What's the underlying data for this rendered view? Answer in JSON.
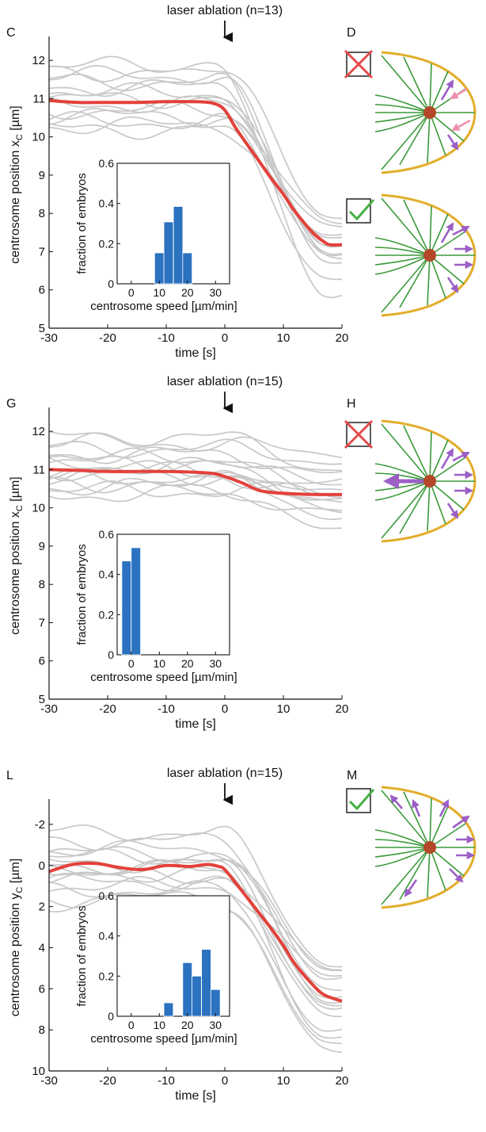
{
  "panel_letters": [
    "C",
    "D",
    "G",
    "H",
    "L",
    "M"
  ],
  "annotation_text": "laser ablation (n=13)",
  "annotation_text_2": "laser ablation (n=15)",
  "colors": {
    "mean": "#e3413b",
    "traces": "#c8c8c8",
    "bars": "#2b72c0",
    "cortex": "#e3ad2a",
    "microtubule": "#3a9a3a",
    "centrosome": "#b34727",
    "force_arrow": "#9b5fc6",
    "weak_arrow": "#ee90aa",
    "check": "#44b144",
    "cross": "#e34b4b"
  },
  "chart_data": [
    {
      "panel": "C",
      "type": "line",
      "xlabel": "time [s]",
      "ylabel": "centrosome position x",
      "ylabel_sub": "C",
      "ylabel_unit": " [µm]",
      "xlim": [
        -30,
        20
      ],
      "ylim": [
        5,
        12.5
      ],
      "y_inverted": false,
      "xticks": [
        -30,
        -20,
        -10,
        0,
        10,
        20
      ],
      "yticks": [
        5,
        6,
        7,
        8,
        9,
        10,
        11,
        12
      ],
      "annotation": "laser ablation (n=13)",
      "annotation_x": 0,
      "mean": {
        "x": [
          -30,
          -25,
          -20,
          -15,
          -10,
          -5,
          -2,
          0,
          2,
          5,
          8,
          10,
          12,
          15,
          17,
          18,
          20
        ],
        "y": [
          10.95,
          10.9,
          10.9,
          10.9,
          10.92,
          10.92,
          10.88,
          10.7,
          10.2,
          9.55,
          8.9,
          8.5,
          8.05,
          7.5,
          7.25,
          7.18,
          7.18
        ]
      },
      "traces": [
        {
          "y0": 11.6,
          "y1": 6.9
        },
        {
          "y0": 11.45,
          "y1": 7.0
        },
        {
          "y0": 11.3,
          "y1": 7.1
        },
        {
          "y0": 11.15,
          "y1": 6.7
        },
        {
          "y0": 11.0,
          "y1": 7.2
        },
        {
          "y0": 10.85,
          "y1": 7.4
        },
        {
          "y0": 10.7,
          "y1": 7.6
        },
        {
          "y0": 10.55,
          "y1": 7.8
        },
        {
          "y0": 10.4,
          "y1": 7.0
        },
        {
          "y0": 11.7,
          "y1": 5.8
        },
        {
          "y0": 10.3,
          "y1": 7.3
        },
        {
          "y0": 11.85,
          "y1": 7.9
        },
        {
          "y0": 10.2,
          "y1": 6.3
        }
      ],
      "inset": {
        "type": "bar",
        "xlabel": "centrosome speed [µm/min]",
        "ylabel": "fraction of embryos",
        "xlim": [
          -5,
          35
        ],
        "ylim": [
          0,
          0.6
        ],
        "xticks": [
          0,
          10,
          20,
          30
        ],
        "yticks": [
          0,
          0.2,
          0.4,
          0.6
        ],
        "bin_centers": [
          10,
          13.3,
          16.7,
          20
        ],
        "bin_width": 3.33,
        "values": [
          0.154,
          0.308,
          0.385,
          0.154
        ]
      }
    },
    {
      "panel": "G",
      "type": "line",
      "xlabel": "time [s]",
      "ylabel": "centrosome position x",
      "ylabel_sub": "C",
      "ylabel_unit": " [µm]",
      "xlim": [
        -30,
        20
      ],
      "ylim": [
        5,
        12.5
      ],
      "y_inverted": false,
      "xticks": [
        -30,
        -20,
        -10,
        0,
        10,
        20
      ],
      "yticks": [
        5,
        6,
        7,
        8,
        9,
        10,
        11,
        12
      ],
      "annotation": "laser ablation (n=15)",
      "annotation_x": 0,
      "mean": {
        "x": [
          -30,
          -25,
          -20,
          -15,
          -10,
          -5,
          -2,
          0,
          3,
          6,
          10,
          15,
          20
        ],
        "y": [
          11.0,
          10.98,
          10.95,
          10.95,
          10.95,
          10.93,
          10.9,
          10.82,
          10.65,
          10.45,
          10.38,
          10.35,
          10.35
        ]
      },
      "traces": [
        {
          "y0": 11.7,
          "y1": 11.4
        },
        {
          "y0": 11.55,
          "y1": 11.2
        },
        {
          "y0": 11.4,
          "y1": 10.9
        },
        {
          "y0": 11.3,
          "y1": 10.6
        },
        {
          "y0": 11.2,
          "y1": 10.4
        },
        {
          "y0": 11.1,
          "y1": 10.2
        },
        {
          "y0": 10.95,
          "y1": 10.1
        },
        {
          "y0": 10.85,
          "y1": 9.95
        },
        {
          "y0": 10.75,
          "y1": 9.8
        },
        {
          "y0": 10.65,
          "y1": 10.7
        },
        {
          "y0": 10.55,
          "y1": 9.4
        },
        {
          "y0": 10.45,
          "y1": 10.5
        },
        {
          "y0": 11.85,
          "y1": 11.0
        },
        {
          "y0": 10.35,
          "y1": 9.9
        },
        {
          "y0": 11.0,
          "y1": 10.3
        }
      ],
      "inset": {
        "type": "bar",
        "xlabel": "centrosome speed [µm/min]",
        "ylabel": "fraction of embryos",
        "xlim": [
          -5,
          35
        ],
        "ylim": [
          0,
          0.6
        ],
        "xticks": [
          0,
          10,
          20,
          30
        ],
        "yticks": [
          0,
          0.2,
          0.4,
          0.6
        ],
        "bin_centers": [
          -1.67,
          1.67
        ],
        "bin_width": 3.33,
        "values": [
          0.467,
          0.533
        ]
      }
    },
    {
      "panel": "L",
      "type": "line",
      "xlabel": "time [s]",
      "ylabel": "centrosome position y",
      "ylabel_sub": "C",
      "ylabel_unit": " [µm]",
      "xlim": [
        -30,
        20
      ],
      "ylim": [
        -3,
        10
      ],
      "y_inverted": true,
      "xticks": [
        -30,
        -20,
        -10,
        0,
        10,
        20
      ],
      "yticks": [
        -2,
        0,
        2,
        4,
        6,
        8,
        10
      ],
      "annotation": "laser ablation (n=15)",
      "annotation_x": 0,
      "mean": {
        "x": [
          -30,
          -26,
          -22,
          -18,
          -14,
          -10,
          -6,
          -3,
          -1,
          0,
          2,
          5,
          8,
          10,
          12,
          15,
          17,
          20
        ],
        "y": [
          0.3,
          -0.05,
          -0.1,
          0.1,
          0.2,
          0.0,
          0.05,
          -0.05,
          0.05,
          0.2,
          0.9,
          2.0,
          3.1,
          3.9,
          4.8,
          5.8,
          6.3,
          6.6
        ]
      },
      "traces": [
        {
          "y0": -1.2,
          "y1": 5.6
        },
        {
          "y0": -0.8,
          "y1": 5.2
        },
        {
          "y0": -0.4,
          "y1": 6.0
        },
        {
          "y0": -0.1,
          "y1": 6.8
        },
        {
          "y0": 0.2,
          "y1": 7.4
        },
        {
          "y0": 0.5,
          "y1": 5.0
        },
        {
          "y0": 0.8,
          "y1": 6.3
        },
        {
          "y0": 1.2,
          "y1": 8.1
        },
        {
          "y0": 1.6,
          "y1": 8.8
        },
        {
          "y0": 2.0,
          "y1": 9.0
        },
        {
          "y0": -1.6,
          "y1": 4.8
        },
        {
          "y0": 0.0,
          "y1": 7.0
        },
        {
          "y0": 1.0,
          "y1": 5.4
        },
        {
          "y0": -0.6,
          "y1": 6.6
        },
        {
          "y0": 0.4,
          "y1": 8.4
        }
      ],
      "inset": {
        "type": "bar",
        "xlabel": "centrosome speed [µm/min]",
        "ylabel": "fraction of embryos",
        "xlim": [
          -5,
          35
        ],
        "ylim": [
          0,
          0.6
        ],
        "xticks": [
          0,
          10,
          20,
          30
        ],
        "yticks": [
          0,
          0.2,
          0.4,
          0.6
        ],
        "bin_centers": [
          13.3,
          20,
          23.3,
          26.7,
          30
        ],
        "bin_width": 3.33,
        "values": [
          0.067,
          0.267,
          0.2,
          0.333,
          0.133
        ]
      }
    }
  ],
  "schematics": [
    {
      "panel": "D",
      "status": "cross",
      "arrows": "weak"
    },
    {
      "panel": "D",
      "status": "check",
      "arrows": "posterior"
    },
    {
      "panel": "H",
      "status": "cross",
      "arrows": "anterior"
    },
    {
      "panel": "M",
      "status": "check",
      "arrows": "radial"
    }
  ]
}
